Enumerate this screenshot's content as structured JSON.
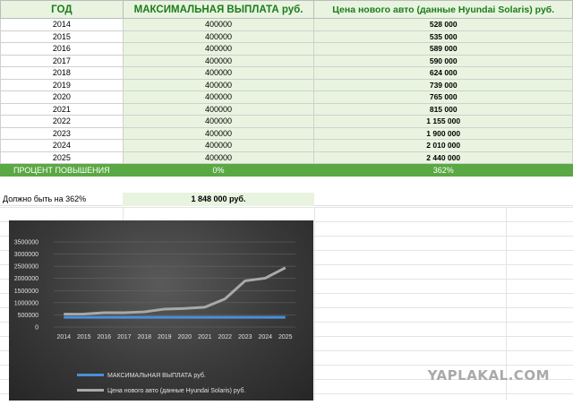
{
  "table": {
    "headers": [
      "ГОД",
      "МАКСИМАЛЬНАЯ ВЫПЛАТА руб.",
      "Цена нового авто  (данные Hyundai Solaris) руб."
    ],
    "rows": [
      [
        "2014",
        "400000",
        "528 000"
      ],
      [
        "2015",
        "400000",
        "535 000"
      ],
      [
        "2016",
        "400000",
        "589 000"
      ],
      [
        "2017",
        "400000",
        "590 000"
      ],
      [
        "2018",
        "400000",
        "624 000"
      ],
      [
        "2019",
        "400000",
        "739 000"
      ],
      [
        "2020",
        "400000",
        "765 000"
      ],
      [
        "2021",
        "400000",
        "815 000"
      ],
      [
        "2022",
        "400000",
        "1 155 000"
      ],
      [
        "2023",
        "400000",
        "1 900 000"
      ],
      [
        "2024",
        "400000",
        "2 010 000"
      ],
      [
        "2025",
        "400000",
        "2 440 000"
      ]
    ],
    "percent_row": [
      "ПРОЦЕНТ ПОВЫШЕНИЯ",
      "0%",
      "362%"
    ]
  },
  "summary": {
    "label": "Должно быть на 362%",
    "value": "1 848 000 руб."
  },
  "chart_data": {
    "type": "line",
    "categories": [
      "2014",
      "2015",
      "2016",
      "2017",
      "2018",
      "2019",
      "2020",
      "2021",
      "2022",
      "2023",
      "2024",
      "2025"
    ],
    "series": [
      {
        "name": "МАКСИМАЛЬНАЯ ВЫПЛАТА руб.",
        "color": "#4a90d9",
        "values": [
          400000,
          400000,
          400000,
          400000,
          400000,
          400000,
          400000,
          400000,
          400000,
          400000,
          400000,
          400000
        ]
      },
      {
        "name": "Цена нового авто  (данные Hyundai Solaris) руб.",
        "color": "#a9a9a9",
        "values": [
          528000,
          535000,
          589000,
          590000,
          624000,
          739000,
          765000,
          815000,
          1155000,
          1900000,
          2010000,
          2440000
        ]
      }
    ],
    "yticks": [
      "0",
      "500000",
      "1000000",
      "1500000",
      "2000000",
      "2500000",
      "3000000",
      "3500000"
    ],
    "ylim": [
      0,
      3500000
    ],
    "grid": true,
    "legend": "bottom"
  },
  "watermark": "YAPLAKAL.COM",
  "colors": {
    "header_text": "#1e7b1e",
    "light_green": "#e8f4df",
    "dark_green": "#5aa843",
    "chart_bg": "#3a3a3a"
  }
}
